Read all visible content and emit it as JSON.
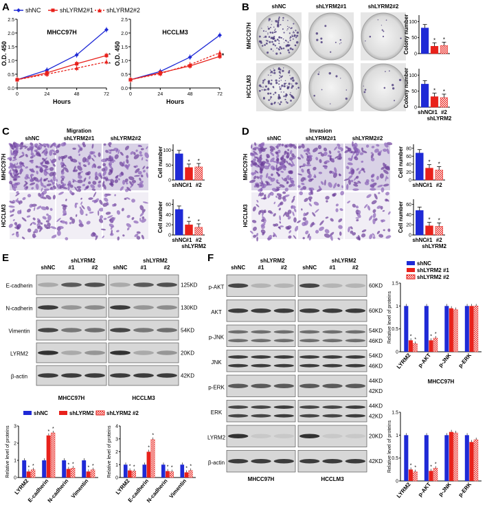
{
  "panels": {
    "a": "A",
    "b": "B",
    "c": "C",
    "d": "D",
    "e": "E",
    "f": "F"
  },
  "colors": {
    "shnc": "#1f2ad6",
    "sh1": "#e8211b",
    "sh2": "#f2a0a0",
    "axis": "#000000"
  },
  "icons": {
    "colony_wells": "circle-dish-icon",
    "transwell": "stained-membrane-icon",
    "blot_band": "western-band-icon"
  },
  "growth": {
    "legend": [
      "shNC",
      "shLYRM2#1",
      "shLYRM2#2"
    ],
    "xlabel": "Hours",
    "ylabel": "O.D. 450",
    "xticks": [
      "0",
      "24",
      "48",
      "72"
    ],
    "yticks": [
      "0.0",
      "0.5",
      "1.0",
      "1.5",
      "2.0",
      "2.5"
    ],
    "star": "*",
    "charts": [
      {
        "title": "MHCC97H"
      },
      {
        "title": "HCCLM3"
      }
    ]
  },
  "colony": {
    "headers": [
      "shNC",
      "shLYRM2#1",
      "shLYRM2#2"
    ],
    "rows": [
      "MHCC97H",
      "HCCLM3"
    ],
    "ylabel": "Colony number",
    "yticks": [
      "0",
      "50",
      "100"
    ],
    "xcats": [
      "shNC",
      "#1",
      "#2"
    ],
    "group": "shLYRM2"
  },
  "migration": {
    "title": "Migration",
    "headers": [
      "shNC",
      "shLYRM2#1",
      "shLYRM2#2"
    ],
    "rows": [
      "MHCC97H",
      "HCCLM3"
    ],
    "ylabel": "Cell number",
    "yticks_top": [
      "0",
      "50",
      "100"
    ],
    "yticks_bottom": [
      "0",
      "20",
      "40",
      "60"
    ],
    "xcats": [
      "shNC",
      "#1",
      "#2"
    ],
    "group": "shLYRM2"
  },
  "invasion": {
    "title": "Invasion",
    "headers": [
      "shNC",
      "shLYRM2#1",
      "shLYRM2#2"
    ],
    "rows": [
      "MHCC97H",
      "HCCLM3"
    ],
    "ylabel": "Cell number",
    "yticks_top": [
      "0",
      "20",
      "40",
      "60",
      "80"
    ],
    "yticks_bottom": [
      "0",
      "20",
      "40",
      "60"
    ],
    "xcats": [
      "shNC",
      "#1",
      "#2"
    ],
    "group": "shLYRM2"
  },
  "blot_e": {
    "lanes": [
      "shNC",
      "#1",
      "#2",
      "shNC",
      "#1",
      "#2"
    ],
    "group": "shLYRM2",
    "proteins": [
      "E-cadherin",
      "N-cadherin",
      "Vimentin",
      "LYRM2",
      "β-actin"
    ],
    "sizes": [
      "125KD",
      "130KD",
      "54KD",
      "20KD",
      "42KD"
    ],
    "cells": [
      "MHCC97H",
      "HCCLM3"
    ]
  },
  "blot_f": {
    "lanes": [
      "shNC",
      "#1",
      "#2",
      "shNC",
      "#1",
      "#2"
    ],
    "group": "shLYRM2",
    "proteins": [
      "p-AKT",
      "AKT",
      "p-JNK",
      "JNK",
      "p-ERK",
      "ERK",
      "LYRM2",
      "β-actin"
    ],
    "sizes_left": [],
    "sizes": [
      "60KD",
      "60KD",
      "54KD",
      "46KD",
      "54KD",
      "46KD",
      "44KD",
      "42KD",
      "44KD",
      "42KD",
      "20KD",
      "42KD"
    ],
    "cells": [
      "MHCC97H",
      "HCCLM3"
    ]
  },
  "legend_bars": [
    "shNC",
    "shLYRM2 #1",
    "shLYRM2 #2"
  ],
  "legend_bars_f": [
    "shNC",
    "shLYRM2 #1",
    "shLYRM2 #2"
  ],
  "rel_ylabel": "Relative level of proteins",
  "chart_data": [
    {
      "type": "line",
      "title": "MHCC97H",
      "xlabel": "Hours",
      "ylabel": "O.D. 450",
      "x": [
        0,
        24,
        48,
        72
      ],
      "ylim": [
        0,
        2.5
      ],
      "series": [
        {
          "name": "shNC",
          "values": [
            0.3,
            0.65,
            1.2,
            2.12
          ]
        },
        {
          "name": "shLYRM2#1",
          "values": [
            0.3,
            0.55,
            0.88,
            1.18
          ]
        },
        {
          "name": "shLYRM2#2",
          "values": [
            0.3,
            0.5,
            0.72,
            0.95
          ]
        }
      ]
    },
    {
      "type": "line",
      "title": "HCCLM3",
      "xlabel": "Hours",
      "ylabel": "O.D. 450",
      "x": [
        0,
        24,
        48,
        72
      ],
      "ylim": [
        0,
        2.5
      ],
      "series": [
        {
          "name": "shNC",
          "values": [
            0.3,
            0.6,
            1.12,
            1.92
          ]
        },
        {
          "name": "shLYRM2#1",
          "values": [
            0.3,
            0.55,
            0.8,
            1.15
          ]
        },
        {
          "name": "shLYRM2#2",
          "values": [
            0.3,
            0.52,
            0.85,
            1.28
          ]
        }
      ]
    },
    {
      "type": "bar",
      "ylabel": "Colony number",
      "ylim": [
        0,
        120
      ],
      "categories": [
        "shNC",
        "#1",
        "#2"
      ],
      "values": [
        80,
        23,
        25
      ]
    },
    {
      "type": "bar",
      "ylabel": "Colony number",
      "ylim": [
        0,
        120
      ],
      "categories": [
        "shNC",
        "#1",
        "#2"
      ],
      "values": [
        72,
        33,
        30
      ]
    },
    {
      "type": "bar",
      "ylabel": "Cell number",
      "ylim": [
        0,
        120
      ],
      "categories": [
        "shNC",
        "#1",
        "#2"
      ],
      "values": [
        88,
        42,
        44
      ]
    },
    {
      "type": "bar",
      "ylabel": "Cell number",
      "ylim": [
        0,
        70
      ],
      "categories": [
        "shNC",
        "#1",
        "#2"
      ],
      "values": [
        50,
        20,
        15
      ]
    },
    {
      "type": "bar",
      "ylabel": "Cell number",
      "ylim": [
        0,
        90
      ],
      "categories": [
        "shNC",
        "#1",
        "#2"
      ],
      "values": [
        68,
        30,
        25
      ]
    },
    {
      "type": "bar",
      "ylabel": "Cell number",
      "ylim": [
        0,
        70
      ],
      "categories": [
        "shNC",
        "#1",
        "#2"
      ],
      "values": [
        48,
        18,
        17
      ]
    },
    {
      "type": "bar",
      "title": "MHCC97H",
      "ylabel": "Relative level of proteins",
      "ylim": [
        0,
        3
      ],
      "categories": [
        "LYRM2",
        "E-cadherin",
        "N-cadherin",
        "Vimentin"
      ],
      "series": [
        {
          "name": "shNC",
          "values": [
            1,
            1,
            1,
            1
          ]
        },
        {
          "name": "shLYRM2 #1",
          "values": [
            0.35,
            2.45,
            0.5,
            0.35
          ]
        },
        {
          "name": "shLYRM2 #2",
          "values": [
            0.45,
            2.6,
            0.55,
            0.45
          ]
        }
      ]
    },
    {
      "type": "bar",
      "title": "HCCLM3",
      "ylabel": "Relative level of proteins",
      "ylim": [
        0,
        4
      ],
      "categories": [
        "LYRM2",
        "E-cadherin",
        "N-cadherin",
        "Vimentin"
      ],
      "series": [
        {
          "name": "shNC",
          "values": [
            1,
            1,
            1,
            1
          ]
        },
        {
          "name": "shLYRM2 #1",
          "values": [
            0.55,
            2.0,
            0.5,
            0.4
          ]
        },
        {
          "name": "shLYRM2 #2",
          "values": [
            0.5,
            2.95,
            0.45,
            0.55
          ]
        }
      ]
    },
    {
      "type": "bar",
      "title": "MHCC97H",
      "ylabel": "Relative level of proteins",
      "ylim": [
        0,
        1.5
      ],
      "categories": [
        "LYRM2",
        "p-AKT",
        "p-JNK",
        "p-ERK"
      ],
      "series": [
        {
          "name": "shNC",
          "values": [
            1,
            1,
            1,
            1
          ]
        },
        {
          "name": "shLYRM2 #1",
          "values": [
            0.25,
            0.25,
            0.95,
            1.0
          ]
        },
        {
          "name": "shLYRM2 #2",
          "values": [
            0.18,
            0.3,
            0.92,
            1.0
          ]
        }
      ]
    },
    {
      "type": "bar",
      "title": "HCCLM3",
      "ylabel": "Relative level of proteins",
      "ylim": [
        0,
        1.5
      ],
      "categories": [
        "LYRM2",
        "p-AKT",
        "p-JNK",
        "p-ERK"
      ],
      "series": [
        {
          "name": "shNC",
          "values": [
            1,
            1,
            1,
            1
          ]
        },
        {
          "name": "shLYRM2 #1",
          "values": [
            0.25,
            0.22,
            1.07,
            0.85
          ]
        },
        {
          "name": "shLYRM2 #2",
          "values": [
            0.2,
            0.28,
            1.05,
            0.9
          ]
        }
      ]
    }
  ]
}
